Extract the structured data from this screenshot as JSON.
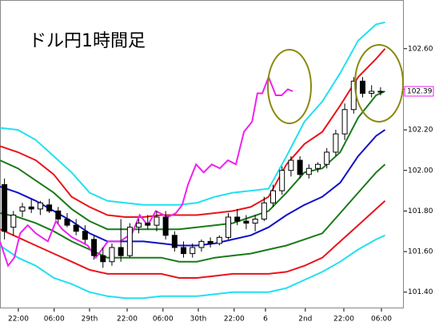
{
  "chart_data": {
    "type": "candlestick",
    "title": "ドル円1時間足",
    "last_price_label": "102.39",
    "up_color": "#ffffff",
    "down_color": "#000000",
    "xlim": [
      0,
      90.2
    ],
    "ylim": [
      101.32,
      102.84
    ],
    "yticks": [
      {
        "value": 101.4,
        "label": "101.40"
      },
      {
        "value": 101.6,
        "label": "101.60"
      },
      {
        "value": 101.8,
        "label": "101.80"
      },
      {
        "value": 102,
        "label": "102.00"
      },
      {
        "value": 102.2,
        "label": "102.20"
      },
      {
        "value": 102.4,
        "label": "102.40"
      },
      {
        "value": 102.6,
        "label": "102.60"
      }
    ],
    "xticks": [
      {
        "value": 4.1,
        "label": "22:00"
      },
      {
        "value": 12.1,
        "label": "06:00"
      },
      {
        "value": 20,
        "label": "29th"
      },
      {
        "value": 28.4,
        "label": "22:00"
      },
      {
        "value": 36.4,
        "label": "06:00"
      },
      {
        "value": 44.3,
        "label": "30th"
      },
      {
        "value": 52.3,
        "label": "22:00"
      },
      {
        "value": 59.3,
        "label": "6"
      },
      {
        "value": 68.2,
        "label": "2nd"
      },
      {
        "value": 76.8,
        "label": "22:00"
      },
      {
        "value": 85.2,
        "label": "06:00"
      }
    ],
    "x": [
      1,
      3,
      5,
      7,
      9,
      11,
      13,
      15,
      17,
      19,
      21,
      23,
      25,
      27,
      29,
      31,
      33,
      35,
      37,
      39,
      41,
      43,
      45,
      47,
      49,
      51,
      53,
      55,
      57,
      59,
      61,
      63,
      65,
      67,
      69,
      71,
      73,
      75,
      77,
      79,
      81,
      83,
      85
    ],
    "open": [
      101.93,
      101.72,
      101.8,
      101.82,
      101.81,
      101.83,
      101.8,
      101.76,
      101.73,
      101.7,
      101.66,
      101.58,
      101.55,
      101.62,
      101.58,
      101.72,
      101.74,
      101.73,
      101.77,
      101.68,
      101.62,
      101.59,
      101.62,
      101.65,
      101.64,
      101.67,
      101.77,
      101.75,
      101.74,
      101.76,
      101.84,
      101.9,
      102.0,
      102.05,
      101.98,
      102.01,
      102.03,
      102.09,
      102.18,
      102.3,
      102.44,
      102.38,
      102.39
    ],
    "high": [
      101.96,
      101.8,
      101.84,
      101.86,
      101.85,
      101.86,
      101.82,
      101.79,
      101.76,
      101.73,
      101.68,
      101.62,
      101.64,
      101.76,
      101.74,
      101.76,
      101.78,
      101.8,
      101.8,
      101.7,
      101.65,
      101.64,
      101.66,
      101.67,
      101.68,
      101.79,
      101.81,
      101.78,
      101.78,
      101.87,
      101.93,
      102.02,
      102.07,
      102.07,
      102.03,
      102.04,
      102.11,
      102.2,
      102.33,
      102.46,
      102.46,
      102.42,
      102.41
    ],
    "low": [
      101.66,
      101.68,
      101.77,
      101.79,
      101.78,
      101.79,
      101.74,
      101.72,
      101.68,
      101.64,
      101.56,
      101.52,
      101.53,
      101.55,
      101.57,
      101.69,
      101.71,
      101.7,
      101.66,
      101.6,
      101.57,
      101.57,
      101.6,
      101.62,
      101.63,
      101.66,
      101.73,
      101.71,
      101.7,
      101.75,
      101.82,
      101.88,
      101.97,
      101.96,
      101.96,
      101.99,
      102.01,
      102.07,
      102.15,
      102.28,
      102.36,
      102.36,
      102.37
    ],
    "close": [
      101.7,
      101.78,
      101.82,
      101.81,
      101.84,
      101.8,
      101.76,
      101.73,
      101.7,
      101.66,
      101.58,
      101.55,
      101.62,
      101.58,
      101.72,
      101.74,
      101.73,
      101.77,
      101.68,
      101.62,
      101.59,
      101.62,
      101.65,
      101.64,
      101.67,
      101.77,
      101.75,
      101.74,
      101.76,
      101.84,
      101.9,
      102.0,
      102.05,
      101.98,
      102.01,
      102.03,
      102.09,
      102.18,
      102.3,
      102.44,
      102.38,
      102.39,
      102.39
    ],
    "series": [
      {
        "color": "#22e0f0",
        "x": [
          0,
          4,
          8,
          12,
          16,
          20,
          24,
          28,
          32,
          36,
          40,
          44,
          48,
          52,
          56,
          60,
          64,
          68,
          72,
          76,
          80,
          84,
          86
        ],
        "values": [
          102.21,
          102.2,
          102.15,
          102.07,
          101.99,
          101.89,
          101.85,
          101.84,
          101.83,
          101.83,
          101.83,
          101.84,
          101.87,
          101.89,
          101.9,
          101.91,
          102.07,
          102.24,
          102.34,
          102.48,
          102.64,
          102.72,
          102.73
        ]
      },
      {
        "color": "#e8141c",
        "x": [
          0,
          4,
          8,
          12,
          16,
          20,
          24,
          28,
          32,
          36,
          40,
          44,
          48,
          52,
          56,
          60,
          64,
          68,
          72,
          76,
          80,
          84,
          86
        ],
        "values": [
          102.12,
          102.09,
          102.05,
          101.98,
          101.87,
          101.82,
          101.78,
          101.77,
          101.77,
          101.78,
          101.78,
          101.78,
          101.79,
          101.8,
          101.82,
          101.87,
          102.03,
          102.13,
          102.19,
          102.32,
          102.46,
          102.55,
          102.6
        ]
      },
      {
        "color": "#1a7a1a",
        "x": [
          0,
          4,
          8,
          12,
          16,
          20,
          24,
          28,
          32,
          36,
          40,
          44,
          48,
          52,
          56,
          60,
          64,
          68,
          72,
          76,
          80,
          84,
          86
        ],
        "values": [
          102.05,
          102.01,
          101.95,
          101.89,
          101.81,
          101.75,
          101.71,
          101.71,
          101.71,
          101.71,
          101.71,
          101.72,
          101.73,
          101.74,
          101.77,
          101.8,
          101.89,
          101.99,
          102.01,
          102.09,
          102.26,
          102.37,
          102.39
        ]
      },
      {
        "color": "#1010c8",
        "x": [
          0,
          4,
          8,
          12,
          16,
          20,
          24,
          28,
          32,
          36,
          40,
          44,
          48,
          52,
          56,
          60,
          64,
          68,
          72,
          76,
          80,
          84,
          86
        ],
        "values": [
          101.92,
          101.89,
          101.85,
          101.8,
          101.75,
          101.69,
          101.65,
          101.65,
          101.65,
          101.64,
          101.63,
          101.63,
          101.64,
          101.66,
          101.68,
          101.72,
          101.78,
          101.83,
          101.87,
          101.94,
          102.07,
          102.17,
          102.2
        ]
      },
      {
        "color": "#1a7a1a",
        "x": [
          0,
          4,
          8,
          12,
          16,
          20,
          24,
          28,
          32,
          36,
          40,
          44,
          48,
          52,
          56,
          60,
          64,
          68,
          72,
          76,
          80,
          84,
          86
        ],
        "values": [
          101.79,
          101.77,
          101.74,
          101.7,
          101.65,
          101.61,
          101.57,
          101.57,
          101.57,
          101.57,
          101.55,
          101.55,
          101.57,
          101.58,
          101.59,
          101.61,
          101.63,
          101.66,
          101.69,
          101.79,
          101.89,
          101.99,
          102.03
        ]
      },
      {
        "color": "#e8141c",
        "x": [
          0,
          4,
          8,
          12,
          16,
          20,
          24,
          28,
          32,
          36,
          40,
          44,
          48,
          52,
          56,
          60,
          64,
          68,
          72,
          76,
          80,
          84,
          86
        ],
        "values": [
          101.71,
          101.67,
          101.63,
          101.59,
          101.55,
          101.51,
          101.49,
          101.49,
          101.49,
          101.49,
          101.47,
          101.47,
          101.48,
          101.49,
          101.49,
          101.49,
          101.5,
          101.53,
          101.57,
          101.65,
          101.73,
          101.81,
          101.85
        ]
      },
      {
        "color": "#22e0f0",
        "x": [
          0,
          4,
          8,
          12,
          16,
          20,
          24,
          28,
          32,
          36,
          40,
          44,
          48,
          52,
          56,
          60,
          64,
          68,
          72,
          76,
          80,
          84,
          86
        ],
        "values": [
          101.63,
          101.57,
          101.53,
          101.47,
          101.44,
          101.4,
          101.38,
          101.37,
          101.37,
          101.38,
          101.38,
          101.38,
          101.39,
          101.4,
          101.4,
          101.4,
          101.42,
          101.46,
          101.5,
          101.55,
          101.61,
          101.66,
          101.68
        ]
      },
      {
        "color": "#ee22ee",
        "x": [
          0,
          1.8,
          3.2,
          4.5,
          6.2,
          8,
          10.7,
          12.5,
          13.9,
          16.1,
          17.9,
          19.6,
          21.4,
          24.1,
          26.8,
          29.5,
          31.2,
          33,
          34.8,
          37.5,
          39.3,
          40.7,
          42,
          43.8,
          45.5,
          47.3,
          49.1,
          50.9,
          52.7,
          54.5,
          56.3,
          57.5,
          58.6,
          60,
          61.6,
          62.9,
          64.3,
          65.4
        ],
        "values": [
          101.65,
          101.53,
          101.57,
          101.69,
          101.73,
          101.69,
          101.65,
          101.75,
          101.71,
          101.67,
          101.65,
          101.63,
          101.57,
          101.65,
          101.65,
          101.69,
          101.78,
          101.73,
          101.8,
          101.77,
          101.79,
          101.83,
          101.93,
          102.03,
          101.99,
          102.03,
          102.01,
          102.05,
          102.03,
          102.19,
          102.24,
          102.38,
          102.38,
          102.46,
          102.37,
          102.37,
          102.4,
          102.39
        ]
      }
    ]
  }
}
